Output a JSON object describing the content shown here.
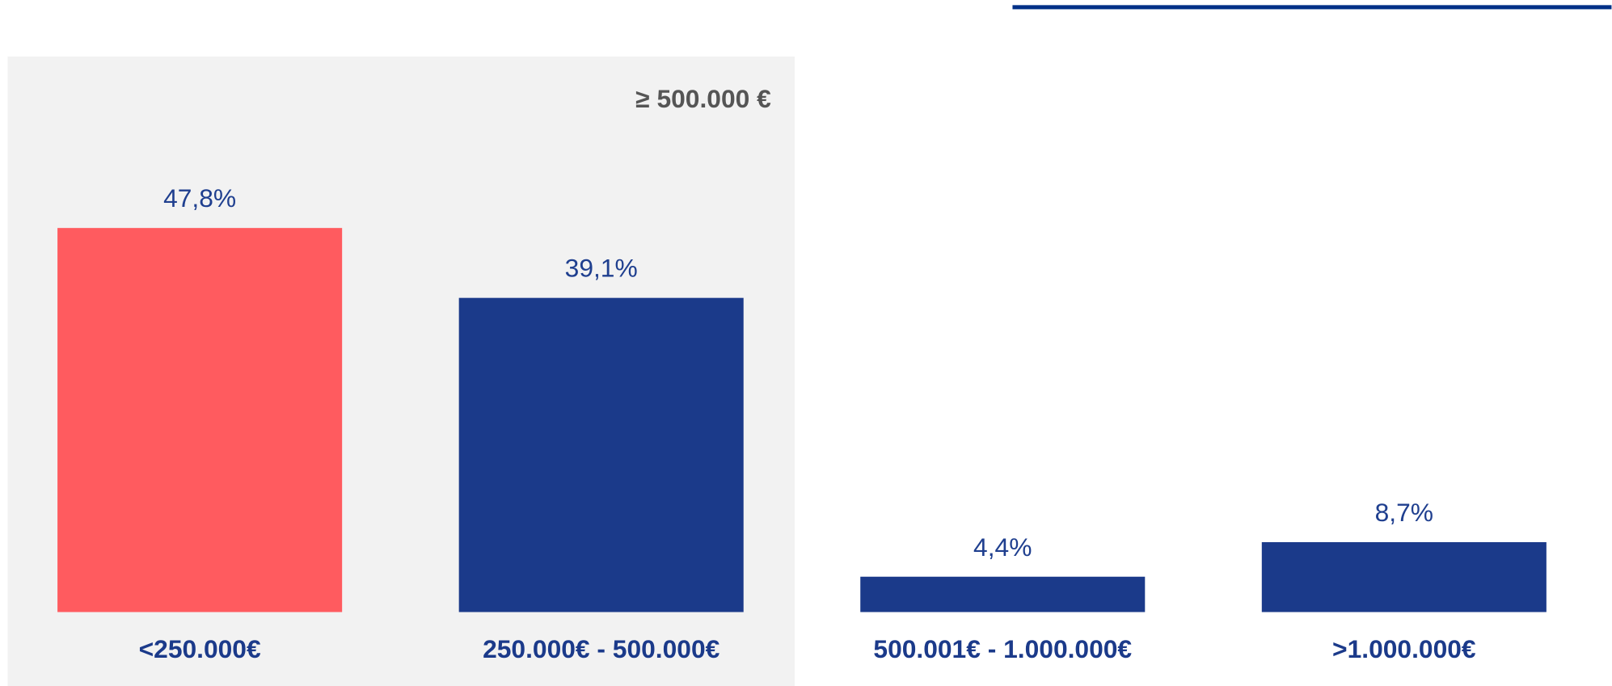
{
  "chart_data": {
    "type": "bar",
    "annotation": "≥ 500.000 €",
    "categories": [
      "<250.000€",
      "250.000€ - 500.000€",
      "500.001€ - 1.000.000€",
      ">1.000.000€"
    ],
    "values": [
      47.8,
      39.1,
      4.4,
      8.7
    ],
    "value_labels": [
      "47,8%",
      "39,1%",
      "4,4%",
      "8,7%"
    ],
    "colors": [
      "#ff5b5f",
      "#1b3a8a",
      "#1b3a8a",
      "#1b3a8a"
    ]
  }
}
